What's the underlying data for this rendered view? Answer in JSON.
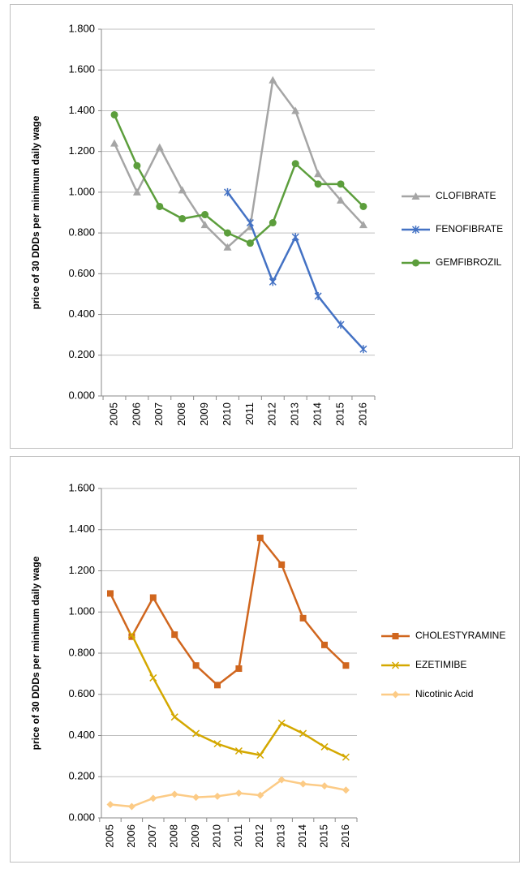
{
  "chart_data": [
    {
      "type": "line",
      "y_label": "price of 30 DDDs per minimum daily wage",
      "categories": [
        "2005",
        "2006",
        "2007",
        "2008",
        "2009",
        "2010",
        "2011",
        "2012",
        "2013",
        "2014",
        "2015",
        "2016"
      ],
      "ylim": [
        0,
        1.8
      ],
      "yticks": [
        {
          "value": 0,
          "label": "0.000"
        },
        {
          "value": 0.2,
          "label": "0.200"
        },
        {
          "value": 0.4,
          "label": "0.400"
        },
        {
          "value": 0.6,
          "label": "0.600"
        },
        {
          "value": 0.8,
          "label": "0.800"
        },
        {
          "value": 1.0,
          "label": "1.000"
        },
        {
          "value": 1.2,
          "label": "1.200"
        },
        {
          "value": 1.4,
          "label": "1.400"
        },
        {
          "value": 1.6,
          "label": "1.600"
        },
        {
          "value": 1.8,
          "label": "1.800"
        }
      ],
      "grid": true,
      "legend": "right",
      "series": [
        {
          "name": "CLOFIBRATE",
          "color": "#a5a5a5",
          "marker": "triangle",
          "values": [
            1.24,
            1.0,
            1.22,
            1.01,
            0.84,
            0.73,
            0.83,
            1.55,
            1.4,
            1.09,
            0.96,
            0.84
          ]
        },
        {
          "name": "FENOFIBRATE",
          "color": "#4472c4",
          "marker": "star",
          "values": [
            null,
            null,
            null,
            null,
            null,
            1.0,
            0.85,
            0.56,
            0.78,
            0.49,
            0.35,
            0.23
          ]
        },
        {
          "name": "GEMFIBROZIL",
          "color": "#5c9e3c",
          "marker": "circle",
          "values": [
            1.38,
            1.13,
            0.93,
            0.87,
            0.89,
            0.8,
            0.75,
            0.85,
            1.14,
            1.04,
            1.04,
            0.93
          ]
        }
      ]
    },
    {
      "type": "line",
      "y_label": "price of 30 DDDs per minimum daily wage",
      "categories": [
        "2005",
        "2006",
        "2007",
        "2008",
        "2009",
        "2010",
        "2011",
        "2012",
        "2013",
        "2014",
        "2015",
        "2016"
      ],
      "ylim": [
        0,
        1.6
      ],
      "yticks": [
        {
          "value": 0,
          "label": "0.000"
        },
        {
          "value": 0.2,
          "label": "0.200"
        },
        {
          "value": 0.4,
          "label": "0.400"
        },
        {
          "value": 0.6,
          "label": "0.600"
        },
        {
          "value": 0.8,
          "label": "0.800"
        },
        {
          "value": 1.0,
          "label": "1.000"
        },
        {
          "value": 1.2,
          "label": "1.200"
        },
        {
          "value": 1.4,
          "label": "1.400"
        },
        {
          "value": 1.6,
          "label": "1.600"
        }
      ],
      "grid": true,
      "legend": "right",
      "series": [
        {
          "name": "CHOLESTYRAMINE",
          "color": "#d0661e",
          "marker": "square",
          "values": [
            1.09,
            0.88,
            1.07,
            0.89,
            0.74,
            0.645,
            0.725,
            1.36,
            1.23,
            0.97,
            0.84,
            0.74
          ]
        },
        {
          "name": "EZETIMIBE",
          "color": "#d4a800",
          "marker": "x",
          "values": [
            null,
            0.89,
            0.68,
            0.49,
            0.41,
            0.36,
            0.325,
            0.305,
            0.46,
            0.41,
            0.345,
            0.295
          ]
        },
        {
          "name": "Nicotinic Acid",
          "color": "#fccb86",
          "marker": "diamond",
          "values": [
            0.065,
            0.055,
            0.095,
            0.115,
            0.1,
            0.105,
            0.12,
            0.11,
            0.185,
            0.165,
            0.155,
            0.135
          ]
        }
      ]
    }
  ]
}
